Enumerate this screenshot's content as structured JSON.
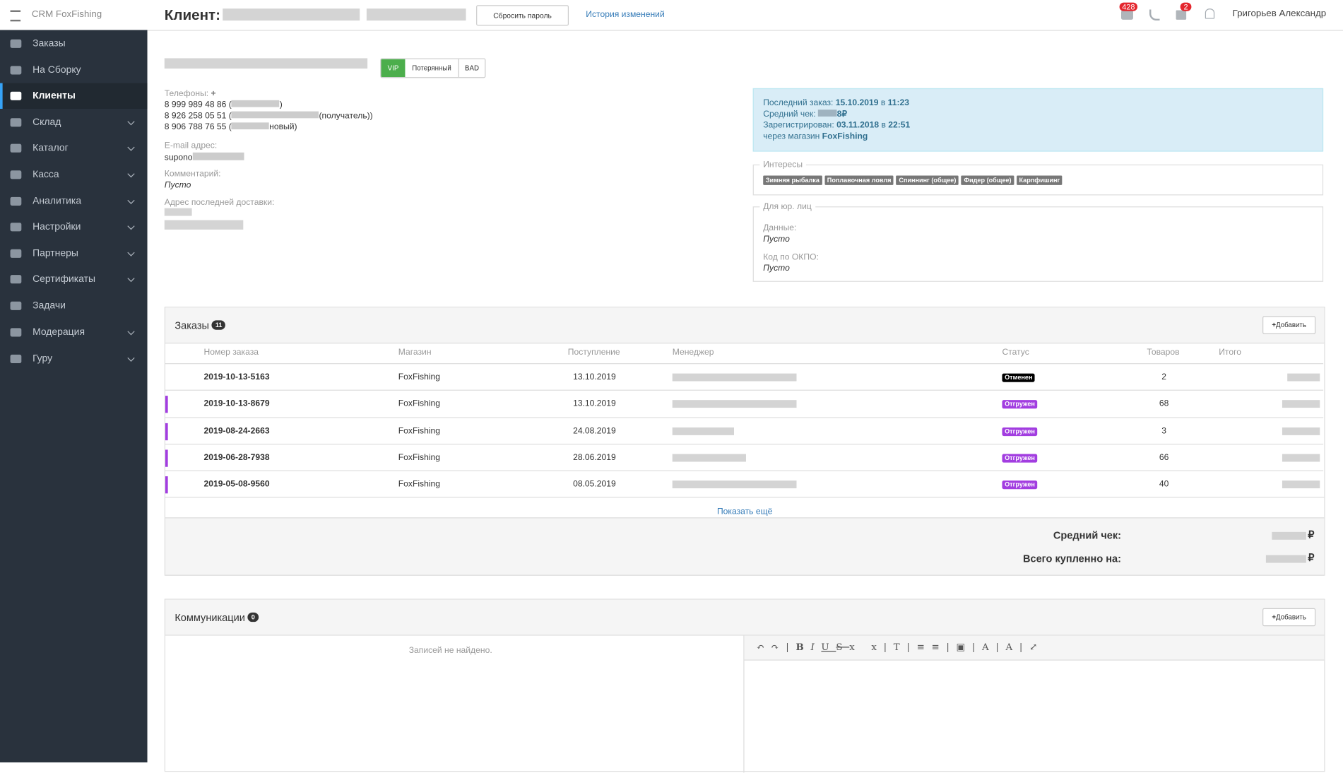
{
  "app_name": "CRM FoxFishing",
  "header": {
    "title": "Клиент:",
    "reset_password": "Сбросить пароль",
    "history": "История изменений",
    "messages_badge": "428",
    "cart_badge": "2",
    "user": "Григорьев Александр"
  },
  "sidebar": [
    "Заказы",
    "На Сборку",
    "Клиенты",
    "Склад",
    "Каталог",
    "Касса",
    "Аналитика",
    "Настройки",
    "Партнеры",
    "Сертификаты",
    "Задачи",
    "Модерация",
    "Гуру"
  ],
  "client": {
    "status_buttons": [
      "VIP",
      "Потерянный",
      "BAD"
    ],
    "phones_label": "Телефоны:",
    "phones": [
      {
        "number": "8 999 989 48 86 (",
        "tail": ")"
      },
      {
        "number": "8 926 258 05 51 (",
        "tail": "(получатель))"
      },
      {
        "number": "8 906 788 76 55 (",
        "tail": "новый)"
      }
    ],
    "email_label": "E-mail адрес:",
    "email": "supono",
    "comment_label": "Комментарий:",
    "comment": "Пусто",
    "address_label": "Адрес последней доставки:"
  },
  "info": {
    "last_order_label": "Последний заказ:",
    "last_order_date": "15.10.2019",
    "in": "в",
    "last_order_time": "11:23",
    "avg_check_label": "Средний чек:",
    "avg_check_tail": "8₽",
    "registered_label": "Зарегистрирован:",
    "registered_date": "03.11.2018",
    "registered_time": "22:51",
    "via_label": "через магазин",
    "via_shop": "FoxFishing"
  },
  "interests": {
    "legend": "Интересы",
    "tags": [
      "Зимняя рыбалка",
      "Поплавочная ловля",
      "Спиннинг (общее)",
      "Фидер (общее)",
      "Карпфишинг"
    ]
  },
  "legal": {
    "legend": "Для юр. лиц",
    "data_label": "Данные:",
    "data_value": "Пусто",
    "okpo_label": "Код по ОКПО:",
    "okpo_value": "Пусто"
  },
  "orders": {
    "title": "Заказы",
    "count": "11",
    "add": "Добавить",
    "columns": [
      "Номер заказа",
      "Магазин",
      "Поступление",
      "Менеджер",
      "Статус",
      "Товаров",
      "Итого"
    ],
    "rows": [
      {
        "number": "2019-10-13-5163",
        "shop": "FoxFishing",
        "date": "13.10.2019",
        "status": "Отменен",
        "items": 2
      },
      {
        "number": "2019-10-13-8679",
        "shop": "FoxFishing",
        "date": "13.10.2019",
        "status": "Отгружен",
        "items": 68
      },
      {
        "number": "2019-08-24-2663",
        "shop": "FoxFishing",
        "date": "24.08.2019",
        "status": "Отгружен",
        "items": 3
      },
      {
        "number": "2019-06-28-7938",
        "shop": "FoxFishing",
        "date": "28.06.2019",
        "status": "Отгружен",
        "items": 66
      },
      {
        "number": "2019-05-08-9560",
        "shop": "FoxFishing",
        "date": "08.05.2019",
        "status": "Отгружен",
        "items": 40
      }
    ],
    "show_more": "Показать ещё",
    "avg_label": "Средний чек:",
    "total_label": "Всего купленно на:",
    "currency": "₽"
  },
  "communications": {
    "title": "Коммуникации",
    "count": "0",
    "add": "Добавить",
    "empty": "Записей не найдено."
  }
}
